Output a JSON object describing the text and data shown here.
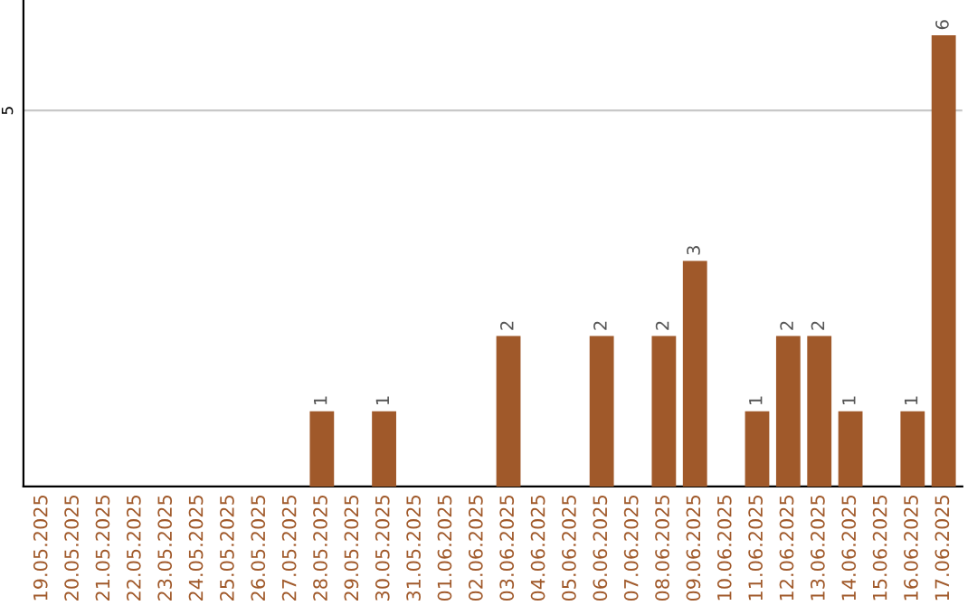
{
  "chart_data": {
    "type": "bar",
    "categories": [
      "19.05.2025",
      "20.05.2025",
      "21.05.2025",
      "22.05.2025",
      "23.05.2025",
      "24.05.2025",
      "25.05.2025",
      "26.05.2025",
      "27.05.2025",
      "28.05.2025",
      "29.05.2025",
      "30.05.2025",
      "31.05.2025",
      "01.06.2025",
      "02.06.2025",
      "03.06.2025",
      "04.06.2025",
      "05.06.2025",
      "06.06.2025",
      "07.06.2025",
      "08.06.2025",
      "09.06.2025",
      "10.06.2025",
      "11.06.2025",
      "12.06.2025",
      "13.06.2025",
      "14.06.2025",
      "15.06.2025",
      "16.06.2025",
      "17.06.2025"
    ],
    "values": [
      0,
      0,
      0,
      0,
      0,
      0,
      0,
      0,
      0,
      1,
      0,
      1,
      0,
      0,
      0,
      2,
      0,
      0,
      2,
      0,
      2,
      3,
      0,
      1,
      2,
      2,
      1,
      0,
      1,
      6
    ],
    "value_labels": [
      null,
      null,
      null,
      null,
      null,
      null,
      null,
      null,
      null,
      "1",
      null,
      "1",
      null,
      null,
      null,
      "2",
      null,
      null,
      "2",
      null,
      "2",
      "3",
      null,
      "1",
      "2",
      "2",
      "1",
      null,
      "1",
      "6"
    ],
    "color": "#a0592a",
    "ylim": [
      0,
      6.47
    ],
    "yticks": [
      5
    ],
    "grid": "y"
  }
}
